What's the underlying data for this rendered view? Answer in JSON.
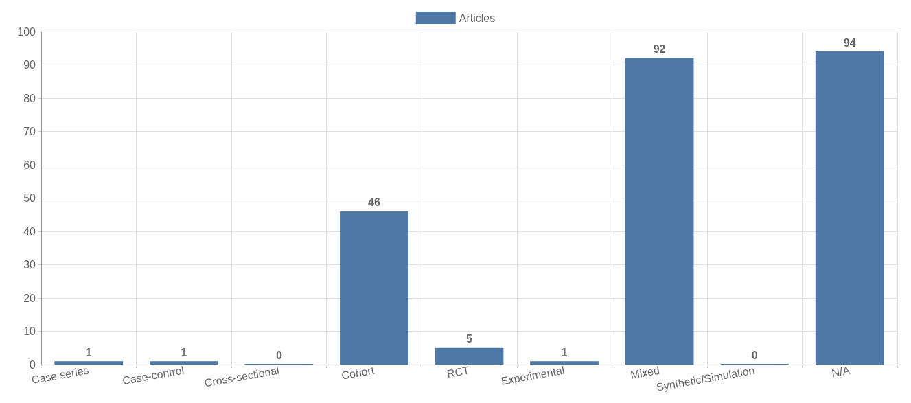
{
  "chart_data": {
    "type": "bar",
    "categories": [
      "Case series",
      "Case-control",
      "Cross-sectional",
      "Cohort",
      "RCT",
      "Experimental",
      "Mixed",
      "Synthetic/Simulation",
      "N/A"
    ],
    "series": [
      {
        "name": "Articles",
        "color": "#4e79a7",
        "values": [
          1,
          1,
          0,
          46,
          5,
          1,
          92,
          0,
          94
        ]
      }
    ],
    "ylim": [
      0,
      100
    ],
    "yticks": [
      0,
      10,
      20,
      30,
      40,
      50,
      60,
      70,
      80,
      90,
      100
    ],
    "grid": true,
    "legend": "top",
    "data_labels": true
  }
}
